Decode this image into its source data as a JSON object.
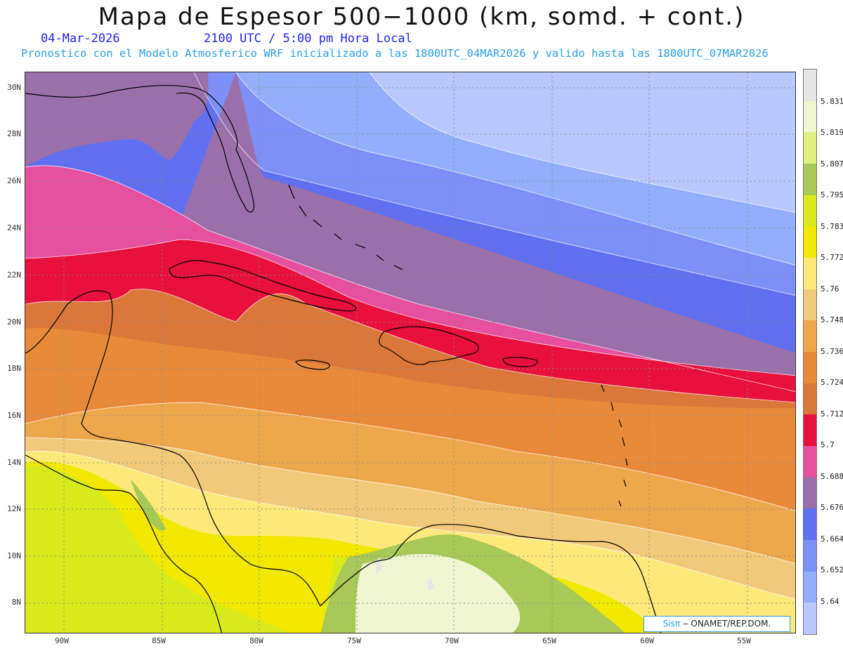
{
  "header": {
    "title": "Mapa de Espesor 500−1000 (km, somd. + cont.)",
    "date": "04-Mar-2026",
    "time": "2100 UTC / 5:00 pm Hora Local",
    "description": "Pronostico con el Modelo Atmosferico WRF inicializado a las 1800UTC_04MAR2026 y valido hasta las  1800UTC_07MAR2026"
  },
  "axes": {
    "latitudes": [
      "30N",
      "28N",
      "26N",
      "24N",
      "22N",
      "20N",
      "18N",
      "16N",
      "14N",
      "12N",
      "10N",
      "8N"
    ],
    "longitudes": [
      "90W",
      "85W",
      "80W",
      "75W",
      "70W",
      "65W",
      "60W",
      "55W"
    ]
  },
  "colorbar": {
    "levels": [
      "5.831",
      "5.819",
      "5.807",
      "5.795",
      "5.783",
      "5.772",
      "5.76",
      "5.748",
      "5.736",
      "5.724",
      "5.712",
      "5.7",
      "5.688",
      "5.676",
      "5.664",
      "5.652",
      "5.64"
    ],
    "colors": [
      "#e6e6e6",
      "#f0f5d2",
      "#e0f07e",
      "#a8c858",
      "#d8ea1c",
      "#f2e800",
      "#fde97a",
      "#f2c97a",
      "#eda84e",
      "#e88a3a",
      "#db773a",
      "#e8103c",
      "#e6509e",
      "#9a70aa",
      "#6070f0",
      "#7c90f8",
      "#93aefa",
      "#b8c8fc"
    ]
  },
  "credit": {
    "brand": "Sisπ",
    "text": " ‒ ONAMET/REP.DOM."
  }
}
